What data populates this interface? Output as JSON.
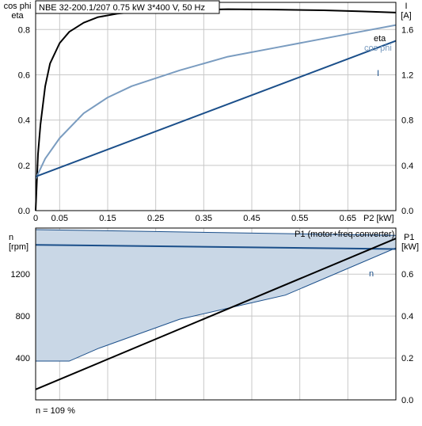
{
  "chart_data": [
    {
      "type": "line",
      "title": "NBE 32-200.1/207   0.75 kW   3*400 V, 50 Hz",
      "xlabel": "P2 [kW]",
      "x_ticks": [
        "0",
        "0.05",
        "0.15",
        "0.25",
        "0.35",
        "0.45",
        "0.55",
        "0.65"
      ],
      "y_left": {
        "label_line1": "cos phi",
        "label_line2": "eta",
        "ticks": [
          "0.0",
          "0.2",
          "0.4",
          "0.6",
          "0.8"
        ],
        "ylim": [
          0,
          0.92
        ]
      },
      "y_right": {
        "label_line1": "I",
        "label_line2": "[A]",
        "ticks": [
          "0.0",
          "0.4",
          "0.8",
          "1.2",
          "1.6"
        ],
        "ylim": [
          0,
          1.84
        ]
      },
      "xlim": [
        0,
        0.75
      ],
      "grid": true,
      "series": [
        {
          "name": "eta",
          "axis": "left",
          "color": "#000000",
          "x": [
            0.0,
            0.005,
            0.01,
            0.02,
            0.03,
            0.05,
            0.07,
            0.1,
            0.13,
            0.17,
            0.22,
            0.3,
            0.4,
            0.5,
            0.6,
            0.68,
            0.75
          ],
          "y": [
            0.0,
            0.25,
            0.38,
            0.55,
            0.65,
            0.74,
            0.79,
            0.83,
            0.855,
            0.87,
            0.88,
            0.885,
            0.89,
            0.888,
            0.885,
            0.88,
            0.875
          ]
        },
        {
          "name": "cos phi",
          "axis": "left",
          "color": "#7a9cc0",
          "x": [
            0.0,
            0.02,
            0.05,
            0.1,
            0.15,
            0.2,
            0.3,
            0.4,
            0.5,
            0.6,
            0.7,
            0.75
          ],
          "y": [
            0.14,
            0.23,
            0.32,
            0.43,
            0.5,
            0.55,
            0.62,
            0.68,
            0.72,
            0.76,
            0.8,
            0.82
          ]
        },
        {
          "name": "I",
          "axis": "right",
          "color": "#1b4f8a",
          "x": [
            0.0,
            0.75
          ],
          "y": [
            0.3,
            1.5
          ]
        }
      ]
    },
    {
      "type": "line",
      "x_ticks": [],
      "y_left": {
        "label_line1": "n",
        "label_line2": "[rpm]",
        "ticks": [
          "400",
          "800",
          "1200"
        ],
        "ylim": [
          0,
          1640
        ]
      },
      "y_right": {
        "label_line1": "P1",
        "label_line2": "[kW]",
        "ticks": [
          "0.0",
          "0.2",
          "0.4",
          "0.6"
        ],
        "ylim": [
          0,
          0.82
        ]
      },
      "xlim": [
        0,
        0.75
      ],
      "grid": true,
      "p1_label": "P1 (motor+freq.converter)",
      "n_label": "n",
      "footnote": "n = 109 %",
      "band": {
        "fill": "#c9d7e6",
        "stroke": "#1b4f8a",
        "upper_x": [
          0.0,
          0.75
        ],
        "upper_y": [
          1625,
          1570
        ],
        "lower_x": [
          0.0,
          0.07,
          0.13,
          0.3,
          0.52,
          0.75
        ],
        "lower_y": [
          370,
          370,
          490,
          770,
          1000,
          1450
        ]
      },
      "series": [
        {
          "name": "n",
          "axis": "left",
          "color": "#1b4f8a",
          "x": [
            0.0,
            0.75
          ],
          "y": [
            1480,
            1440
          ]
        },
        {
          "name": "P1",
          "axis": "right",
          "color": "#000000",
          "x": [
            0.0,
            0.75
          ],
          "y": [
            0.05,
            0.77
          ]
        }
      ]
    }
  ]
}
